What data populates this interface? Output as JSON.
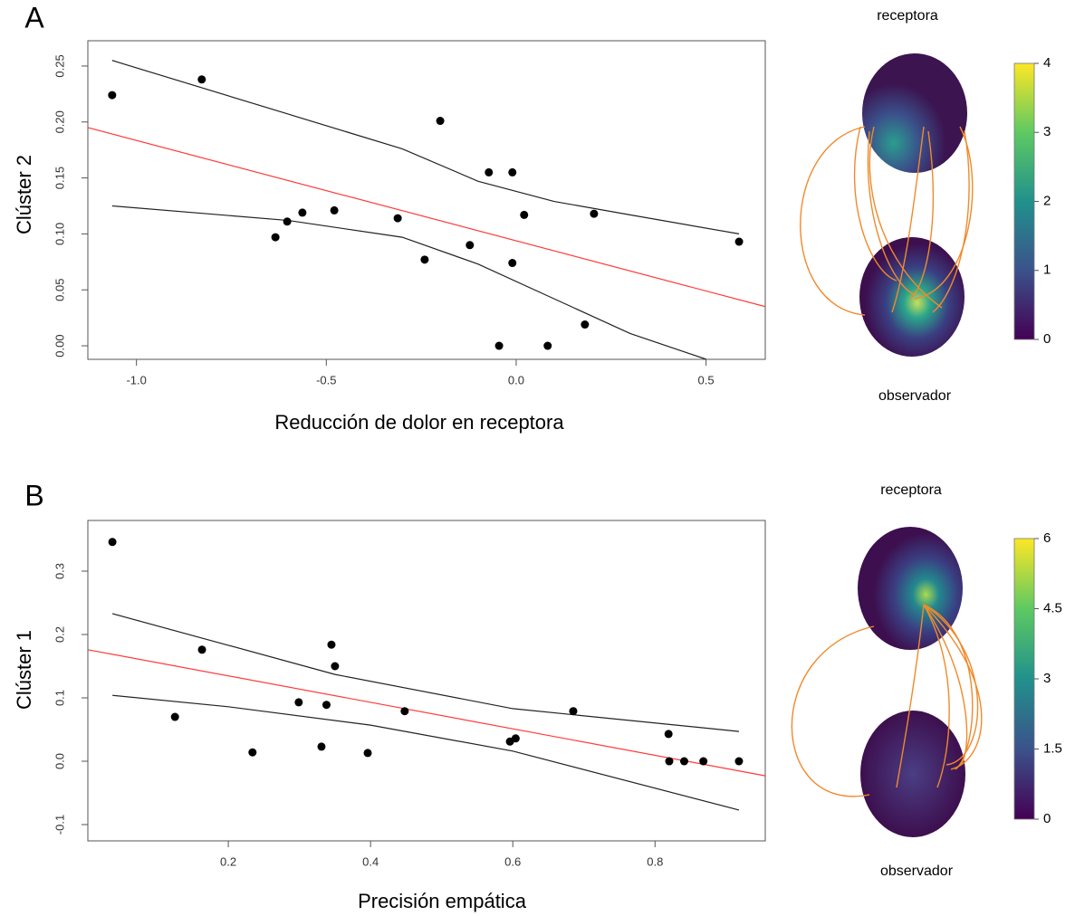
{
  "chart_data": [
    {
      "type": "scatter",
      "panel": "A",
      "x_label": "Reducción de dolor en receptora",
      "y_label": "Clúster 2",
      "x": [
        -1.064,
        -0.828,
        -0.2,
        -0.072,
        -0.01,
        0.021,
        0.205,
        0.587,
        -0.634,
        -0.603,
        -0.563,
        -0.479,
        -0.312,
        -0.241,
        -0.122,
        -0.01,
        -0.045,
        0.083,
        0.181
      ],
      "y": [
        0.224,
        0.238,
        0.201,
        0.155,
        0.155,
        0.117,
        0.118,
        0.093,
        0.097,
        0.111,
        0.119,
        0.121,
        0.114,
        0.077,
        0.09,
        0.074,
        0,
        0,
        0.019
      ],
      "point_color": "#000000",
      "fit": {
        "color": "#ff3b3b",
        "x": [
          -1.128,
          0.656
        ],
        "y": [
          0.195,
          0.035
        ]
      },
      "bands": {
        "color": "#222222",
        "upper": {
          "x": [
            -1.064,
            -0.6,
            -0.3,
            -0.1,
            0.1,
            0.3,
            0.587
          ],
          "y": [
            0.255,
            0.207,
            0.176,
            0.147,
            0.129,
            0.117,
            0.1
          ]
        },
        "lower": {
          "x": [
            -1.064,
            -0.6,
            -0.3,
            -0.1,
            0.1,
            0.3,
            0.5
          ],
          "y": [
            0.125,
            0.112,
            0.097,
            0.073,
            0.042,
            0.011,
            -0.012
          ]
        }
      },
      "xlim": [
        -1.128,
        0.656
      ],
      "ylim": [
        -0.0121,
        0.2726
      ],
      "xticks": [
        {
          "value": -1,
          "label": "-1.0"
        },
        -0.5,
        {
          "value": 0,
          "label": "0.0"
        },
        0.5
      ],
      "yticks": [
        {
          "value": 0,
          "label": "0.00"
        },
        {
          "value": 0.05,
          "label": "0.05"
        },
        {
          "value": 0.1,
          "label": "0.10"
        },
        {
          "value": 0.15,
          "label": "0.15"
        },
        {
          "value": 0.2,
          "label": "0.20"
        },
        {
          "value": 0.25,
          "label": "0.25"
        }
      ],
      "topomap": {
        "top_label": "receptora",
        "bottom_label": "observador",
        "colorbar_lim": [
          0,
          4
        ],
        "colorbar_ticks": [
          0,
          1,
          2,
          3,
          4
        ]
      }
    },
    {
      "type": "scatter",
      "panel": "B",
      "x_label": "Precisión empática",
      "y_label": "Clúster 1",
      "x": [
        0.037,
        0.163,
        0.125,
        0.234,
        0.299,
        0.331,
        0.338,
        0.345,
        0.35,
        0.396,
        0.448,
        0.596,
        0.604,
        0.685,
        0.819,
        0.82,
        0.841,
        0.868,
        0.918
      ],
      "y": [
        0.346,
        0.176,
        0.07,
        0.014,
        0.093,
        0.023,
        0.089,
        0.184,
        0.15,
        0.013,
        0.079,
        0.031,
        0.036,
        0.079,
        0.043,
        0,
        0,
        0,
        0
      ],
      "point_color": "#000000",
      "fit": {
        "color": "#ff3b3b",
        "x": [
          0.0025,
          0.955
        ],
        "y": [
          0.176,
          -0.023
        ]
      },
      "bands": {
        "color": "#222222",
        "upper": {
          "x": [
            0.037,
            0.2,
            0.35,
            0.6,
            0.918
          ],
          "y": [
            0.233,
            0.183,
            0.137,
            0.083,
            0.047
          ]
        },
        "lower": {
          "x": [
            0.037,
            0.2,
            0.4,
            0.6,
            0.918
          ],
          "y": [
            0.104,
            0.086,
            0.057,
            0.016,
            -0.077
          ]
        }
      },
      "xlim": [
        0.0025,
        0.955
      ],
      "ylim": [
        -0.1257,
        0.38
      ],
      "xticks": [
        0.2,
        0.4,
        0.6,
        0.8
      ],
      "yticks": [
        -0.1,
        {
          "value": 0,
          "label": "0.0"
        },
        0.1,
        0.2,
        0.3
      ],
      "topomap": {
        "top_label": "receptora",
        "bottom_label": "observador",
        "colorbar_lim": [
          0,
          6
        ],
        "colorbar_ticks": [
          0,
          1.5,
          3,
          4.5,
          6
        ]
      }
    }
  ]
}
